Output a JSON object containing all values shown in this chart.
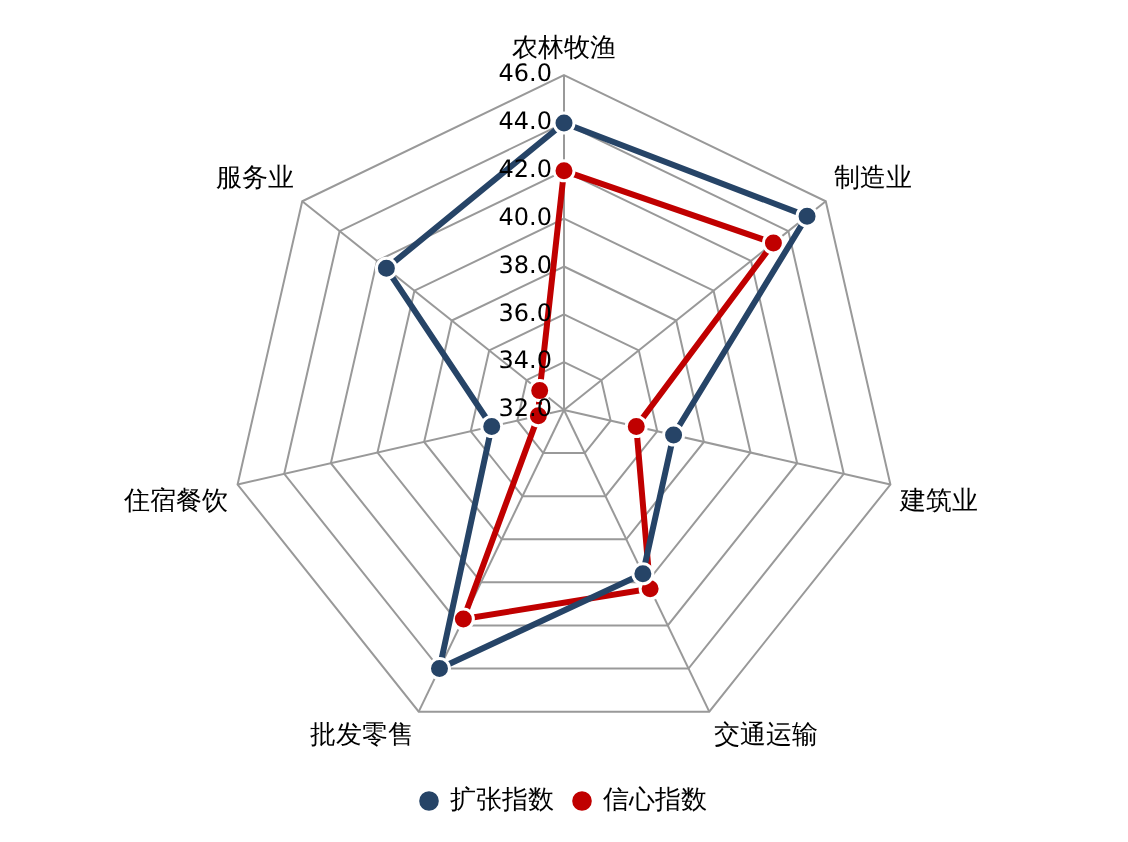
{
  "chart_data": {
    "type": "radar",
    "categories": [
      "农林牧渔",
      "制造业",
      "建筑业",
      "交通运输",
      "批发零售",
      "住宿餐饮",
      "服务业"
    ],
    "series": [
      {
        "name": "扩张指数",
        "color": "#264467",
        "values": [
          44.0,
          45.0,
          36.7,
          39.6,
          44.0,
          35.1,
          41.5
        ]
      },
      {
        "name": "信心指数",
        "color": "#c00000",
        "values": [
          42.0,
          43.2,
          35.1,
          40.3,
          41.7,
          33.1,
          33.3
        ]
      }
    ],
    "ylim": [
      32,
      46
    ],
    "yticks": [
      {
        "value": 32,
        "label": "32.0"
      },
      {
        "value": 34,
        "label": "34.0"
      },
      {
        "value": 36,
        "label": "36.0"
      },
      {
        "value": 38,
        "label": "38.0"
      },
      {
        "value": 40,
        "label": "40.0"
      },
      {
        "value": 42,
        "label": "42.0"
      },
      {
        "value": 44,
        "label": "44.0"
      },
      {
        "value": 46,
        "label": "46.0"
      }
    ],
    "grid": true,
    "legend": "bottom",
    "marker": "circle",
    "line_style": "solid"
  }
}
